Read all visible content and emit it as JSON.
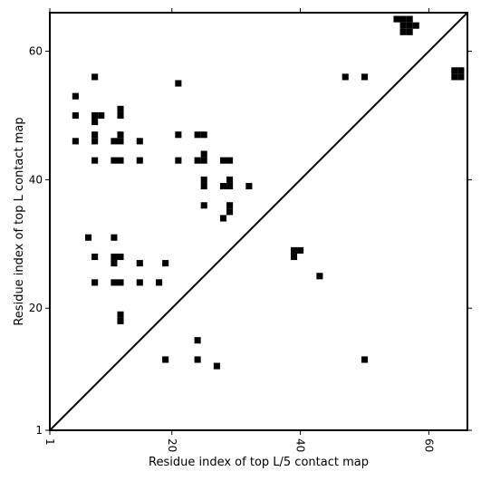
{
  "chart_data": {
    "type": "heatmap",
    "title": "",
    "xlabel": "Residue index of top L/5 contact map",
    "ylabel": "Residue index of top L contact map",
    "xlim": [
      1,
      66
    ],
    "ylim": [
      1,
      66
    ],
    "xticks": [
      1,
      20,
      40,
      60
    ],
    "yticks": [
      1,
      20,
      40,
      60
    ],
    "grid": false,
    "diagonal_line": true,
    "color": "#000000",
    "cells": [
      [
        8,
        56
      ],
      [
        21,
        55
      ],
      [
        5,
        53
      ],
      [
        5,
        50
      ],
      [
        8,
        49
      ],
      [
        8,
        50
      ],
      [
        9,
        50
      ],
      [
        12,
        50
      ],
      [
        12,
        51
      ],
      [
        5,
        46
      ],
      [
        8,
        46
      ],
      [
        8,
        47
      ],
      [
        11,
        46
      ],
      [
        12,
        46
      ],
      [
        12,
        47
      ],
      [
        15,
        46
      ],
      [
        21,
        47
      ],
      [
        24,
        47
      ],
      [
        25,
        47
      ],
      [
        8,
        43
      ],
      [
        11,
        43
      ],
      [
        12,
        43
      ],
      [
        15,
        43
      ],
      [
        21,
        43
      ],
      [
        24,
        43
      ],
      [
        25,
        43
      ],
      [
        25,
        44
      ],
      [
        28,
        43
      ],
      [
        29,
        43
      ],
      [
        25,
        40
      ],
      [
        25,
        39
      ],
      [
        28,
        39
      ],
      [
        29,
        39
      ],
      [
        29,
        40
      ],
      [
        32,
        39
      ],
      [
        25,
        36
      ],
      [
        29,
        36
      ],
      [
        29,
        35
      ],
      [
        28,
        34
      ],
      [
        7,
        31
      ],
      [
        11,
        31
      ],
      [
        8,
        28
      ],
      [
        11,
        28
      ],
      [
        12,
        28
      ],
      [
        11,
        27
      ],
      [
        15,
        27
      ],
      [
        19,
        27
      ],
      [
        8,
        24
      ],
      [
        11,
        24
      ],
      [
        12,
        24
      ],
      [
        15,
        24
      ],
      [
        18,
        24
      ],
      [
        12,
        19
      ],
      [
        12,
        18
      ],
      [
        24,
        15
      ],
      [
        19,
        12
      ],
      [
        24,
        12
      ],
      [
        27,
        11
      ],
      [
        39,
        29
      ],
      [
        40,
        29
      ],
      [
        39,
        28
      ],
      [
        43,
        25
      ],
      [
        47,
        56
      ],
      [
        50,
        56
      ],
      [
        50,
        12
      ],
      [
        55,
        65
      ],
      [
        56,
        65
      ],
      [
        57,
        65
      ],
      [
        58,
        64
      ],
      [
        56,
        64
      ],
      [
        57,
        64
      ],
      [
        56,
        63
      ],
      [
        57,
        63
      ],
      [
        64,
        57
      ],
      [
        65,
        57
      ],
      [
        64,
        56
      ],
      [
        65,
        56
      ]
    ]
  }
}
